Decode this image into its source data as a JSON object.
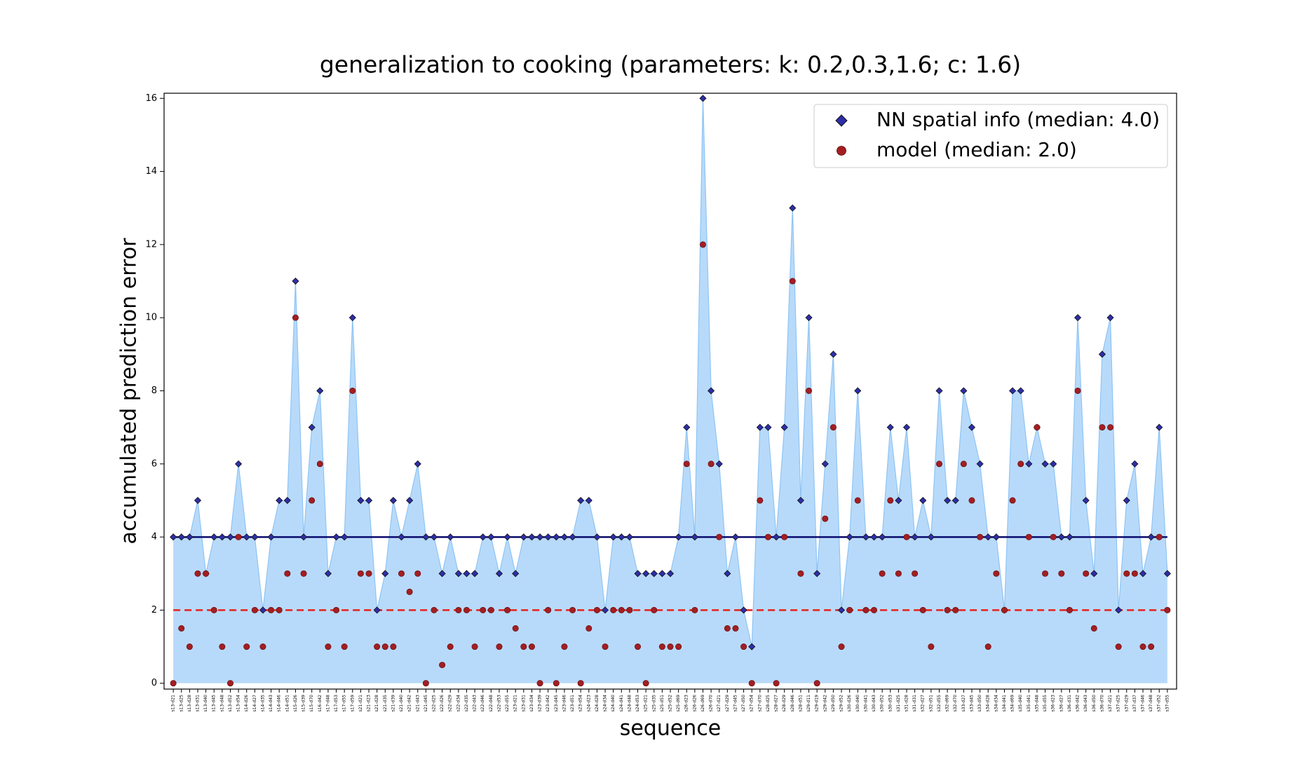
{
  "chart_data": {
    "type": "area-scatter",
    "title": "generalization to cooking (parameters: k: 0.2,0.3,1.6; c: 1.6)",
    "x_label": "sequence",
    "y_label": "accumulated prediction error",
    "categories": [
      "s13-d21",
      "s13-d25",
      "s13-d28",
      "s13-d31",
      "s13-d40",
      "s13-d45",
      "s13-d48",
      "s13-d52",
      "s13-d54",
      "s14-d26",
      "s14-d27",
      "s14-d35",
      "s14-d43",
      "s14-d46",
      "s14-d51",
      "s15-d26",
      "s15-d39",
      "s15-d70",
      "s16-d42",
      "s17-d48",
      "s17-d53",
      "s17-d55",
      "s17-d59",
      "s21-d21",
      "s21-d23",
      "s21-d28",
      "s21-d35",
      "s21-d39",
      "s21-d40",
      "s21-d42",
      "s21-d43",
      "s21-d45",
      "s22-d25",
      "s22-d26",
      "s22-d29",
      "s22-d34",
      "s22-d35",
      "s22-d43",
      "s22-d46",
      "s22-d48",
      "s22-d53",
      "s22-d55",
      "s23-d21",
      "s23-d31",
      "s23-d34",
      "s23-d39",
      "s23-d42",
      "s23-d45",
      "s23-d46",
      "s23-d51",
      "s23-d54",
      "s24-d23",
      "s24-d28",
      "s24-d34",
      "s24-d40",
      "s24-d41",
      "s24-d48",
      "s24-d53",
      "s25-d21",
      "s25-d35",
      "s25-d51",
      "s25-d52",
      "s25-d69",
      "s26-d23",
      "s26-d26",
      "s26-d69",
      "s26-d70",
      "s27-d21",
      "s27-d29",
      "s27-d45",
      "s27-d50",
      "s27-d54",
      "s27-d70",
      "s28-d25",
      "s28-d27",
      "s28-d29",
      "s28-d46",
      "s28-d51",
      "s29-d11",
      "s29-d19",
      "s29-d42",
      "s29-d50",
      "s29-d52",
      "s30-d26",
      "s30-d40",
      "s30-d41",
      "s30-d43",
      "s30-d52",
      "s30-d53",
      "s31-d25",
      "s31-d28",
      "s31-d31",
      "s32-d27",
      "s32-d51",
      "s32-d55",
      "s32-d69",
      "s32-d70",
      "s33-d27",
      "s33-d45",
      "s33-d50",
      "s34-d28",
      "s34-d34",
      "s34-d41",
      "s34-d69",
      "s35-d40",
      "s35-d41",
      "s35-d48",
      "s35-d55",
      "s36-d23",
      "s36-d27",
      "s36-d31",
      "s36-d42",
      "s36-d43",
      "s36-d50",
      "s36-d70",
      "s37-d21",
      "s37-d25",
      "s37-d29",
      "s37-d37",
      "s37-d46",
      "s37-d48",
      "s37-d52",
      "s37-d55"
    ],
    "series": [
      {
        "name": "NN spatial info (median: 4.0)",
        "color": "#2e2eaa",
        "marker": "diamond",
        "median": 4,
        "median_color": "#0a0a6e",
        "median_dash": false,
        "values": [
          4,
          4,
          4,
          5,
          3,
          4,
          4,
          4,
          6,
          4,
          4,
          2,
          4,
          5,
          5,
          11,
          4,
          7,
          8,
          3,
          4,
          4,
          10,
          5,
          5,
          2,
          3,
          5,
          4,
          5,
          6,
          4,
          4,
          3,
          4,
          3,
          3,
          3,
          4,
          4,
          3,
          4,
          3,
          4,
          4,
          4,
          4,
          4,
          4,
          4,
          5,
          5,
          4,
          2,
          4,
          4,
          4,
          3,
          3,
          3,
          3,
          3,
          4,
          7,
          4,
          16,
          8,
          6,
          3,
          4,
          2,
          1,
          7,
          7,
          4,
          7,
          13,
          5,
          10,
          3,
          6,
          9,
          2,
          4,
          8,
          4,
          4,
          4,
          7,
          5,
          7,
          4,
          5,
          4,
          8,
          5,
          5,
          8,
          7,
          6,
          4,
          4,
          2,
          8,
          8,
          6,
          7,
          6,
          6,
          4,
          4,
          10,
          5,
          3,
          9,
          10,
          2,
          5,
          6,
          3,
          4,
          7,
          3
        ]
      },
      {
        "name": "model (median: 2.0)",
        "color": "#a31e22",
        "marker": "circle",
        "median": 2,
        "median_color": "#e8201c",
        "median_dash": true,
        "values": [
          0,
          1.5,
          1,
          3,
          3,
          2,
          1,
          0,
          4,
          1,
          2,
          1,
          2,
          2,
          3,
          10,
          3,
          5,
          6,
          1,
          2,
          1,
          8,
          3,
          3,
          1,
          1,
          1,
          3,
          2.5,
          3,
          0,
          2,
          0.5,
          1,
          2,
          2,
          1,
          2,
          2,
          1,
          2,
          1.5,
          1,
          1,
          0,
          2,
          0,
          1,
          2,
          0,
          1.5,
          2,
          1,
          2,
          2,
          2,
          1,
          0,
          2,
          1,
          1,
          1,
          6,
          2,
          12,
          6,
          4,
          1.5,
          1.5,
          1,
          0,
          5,
          4,
          0,
          4,
          11,
          3,
          8,
          0,
          4.5,
          7,
          1,
          2,
          5,
          2,
          2,
          3,
          5,
          3,
          4,
          3,
          2,
          1,
          6,
          2,
          2,
          6,
          5,
          4,
          1,
          3,
          2,
          5,
          6,
          4,
          7,
          3,
          4,
          3,
          2,
          8,
          3,
          1.5,
          7,
          7,
          1,
          3,
          3,
          1,
          1,
          4,
          2
        ]
      }
    ],
    "fill_color": "#b8dafa",
    "fill_edge_color": "#8ec4f4",
    "ylim": [
      -0.16,
      16.14
    ],
    "yticks": [
      0,
      2,
      4,
      6,
      8,
      10,
      12,
      14,
      16
    ],
    "legend": "upper right"
  }
}
